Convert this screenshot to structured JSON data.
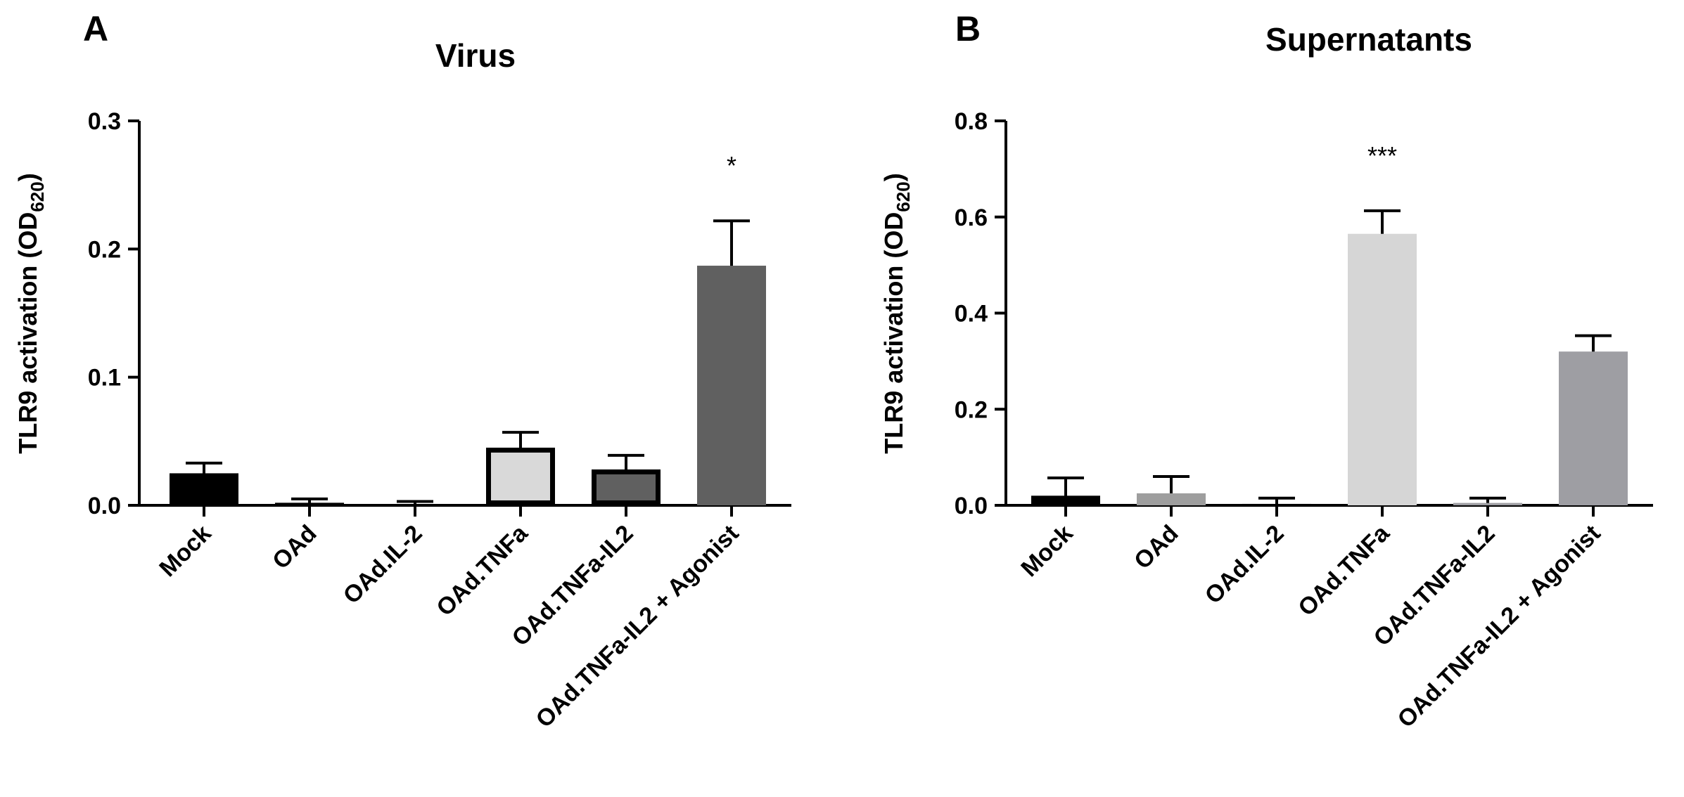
{
  "chart_data": [
    {
      "type": "bar",
      "panel_letter": "A",
      "title": "Virus",
      "ylabel": "TLR9 activation (OD",
      "ylabel_subscript": "620",
      "ylabel_close": ")",
      "ylim": [
        0,
        0.3
      ],
      "yticks": [
        "0.0",
        "0.1",
        "0.2",
        "0.3"
      ],
      "categories": [
        "Mock",
        "OAd",
        "OAd.IL-2",
        "OAd.TNFa",
        "OAd.TNFa-IL2",
        "OAd.TNFa-IL2 + Agonist"
      ],
      "values": [
        0.025,
        0.002,
        0.001,
        0.045,
        0.028,
        0.187
      ],
      "errors": [
        0.008,
        0.003,
        0.002,
        0.012,
        0.011,
        0.035
      ],
      "bar_fills": [
        "#000000",
        "#000000",
        "#000000",
        "#d9d9d9",
        "#606060",
        "#606060"
      ],
      "bar_strokes": [
        "#000000",
        "#000000",
        "#000000",
        "#000000",
        "#000000",
        "#606060"
      ],
      "significance": [
        "",
        "",
        "",
        "",
        "",
        "*"
      ],
      "grid": false
    },
    {
      "type": "bar",
      "panel_letter": "B",
      "title": "Supernatants",
      "ylabel": "TLR9 activation (OD",
      "ylabel_subscript": "620",
      "ylabel_close": ")",
      "ylim": [
        0,
        0.8
      ],
      "yticks": [
        "0.0",
        "0.2",
        "0.4",
        "0.6",
        "0.8"
      ],
      "categories": [
        "Mock",
        "OAd",
        "OAd.IL-2",
        "OAd.TNFa",
        "OAd.TNFa-IL2",
        "OAd.TNFa-IL2 + Agonist"
      ],
      "values": [
        0.02,
        0.025,
        0.003,
        0.565,
        0.005,
        0.32
      ],
      "errors": [
        0.037,
        0.035,
        0.012,
        0.048,
        0.01,
        0.033
      ],
      "bar_fills": [
        "#000000",
        "#9e9e9e",
        "#000000",
        "#d6d6d6",
        "#9e9ea3",
        "#9e9ea3"
      ],
      "bar_strokes": [
        "#000000",
        "#9e9e9e",
        "#000000",
        "#d6d6d6",
        "#9e9ea3",
        "#9e9ea3"
      ],
      "significance": [
        "",
        "",
        "",
        "***",
        "",
        ""
      ],
      "grid": false
    }
  ]
}
